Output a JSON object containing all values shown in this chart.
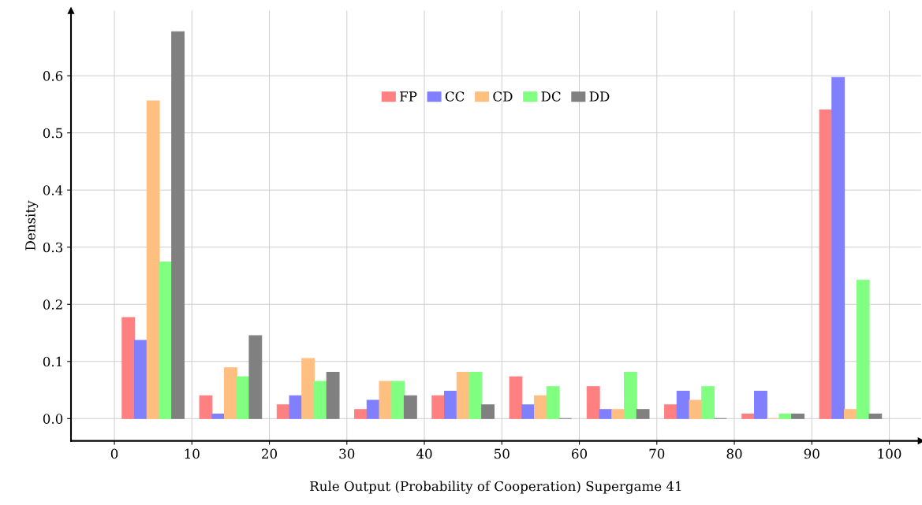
{
  "chart_data": {
    "type": "bar",
    "xlabel": "Rule Output (Probability of Cooperation) Supergame 41",
    "ylabel": "Density",
    "xlim": [
      -5.6,
      104.1
    ],
    "ylim": [
      -0.039,
      0.714
    ],
    "xticks": [
      0,
      10,
      20,
      30,
      40,
      50,
      60,
      70,
      80,
      90,
      100
    ],
    "yticks": [
      {
        "value": 0,
        "label": "0.0"
      },
      {
        "value": 0.1,
        "label": "0.1"
      },
      {
        "value": 0.2,
        "label": "0.2"
      },
      {
        "value": 0.3,
        "label": "0.3"
      },
      {
        "value": 0.4,
        "label": "0.4"
      },
      {
        "value": 0.5,
        "label": "0.5"
      },
      {
        "value": 0.6,
        "label": "0.6"
      }
    ],
    "grid": true,
    "legend": "top",
    "series": [
      {
        "name": "FP",
        "color": "#ff8080",
        "x": [
          1.8,
          11.8,
          21.8,
          31.8,
          41.8,
          51.8,
          61.8,
          71.8,
          81.8,
          91.8
        ],
        "values": [
          0.177,
          0.04,
          0.024,
          0.016,
          0.04,
          0.073,
          0.056,
          0.024,
          0.008,
          0.54
        ]
      },
      {
        "name": "CC",
        "color": "#8080ff",
        "x": [
          3.4,
          13.4,
          23.4,
          33.4,
          43.4,
          53.4,
          63.4,
          73.4,
          83.4,
          93.4
        ],
        "values": [
          0.137,
          0.008,
          0.04,
          0.032,
          0.048,
          0.024,
          0.016,
          0.048,
          0.048,
          0.597
        ]
      },
      {
        "name": "CD",
        "color": "#ffbf80",
        "x": [
          5.0,
          15.0,
          25.0,
          35.0,
          45.0,
          55.0,
          65.0,
          75.0,
          85.0,
          95.0
        ],
        "values": [
          0.556,
          0.089,
          0.105,
          0.065,
          0.081,
          0.04,
          0.016,
          0.032,
          0,
          0.016
        ]
      },
      {
        "name": "DC",
        "color": "#80ff80",
        "x": [
          6.6,
          16.6,
          26.6,
          36.6,
          46.6,
          56.6,
          66.6,
          76.6,
          86.6,
          96.6
        ],
        "values": [
          0.274,
          0.073,
          0.065,
          0.065,
          0.081,
          0.056,
          0.081,
          0.056,
          0.008,
          0.242
        ]
      },
      {
        "name": "DD",
        "color": "#808080",
        "x": [
          8.2,
          18.2,
          28.2,
          38.2,
          48.2,
          58.2,
          68.2,
          78.2,
          88.2,
          98.2
        ],
        "values": [
          0.677,
          0.145,
          0.081,
          0.04,
          0.024,
          0,
          0.016,
          0,
          0.008,
          0.008
        ]
      }
    ]
  }
}
